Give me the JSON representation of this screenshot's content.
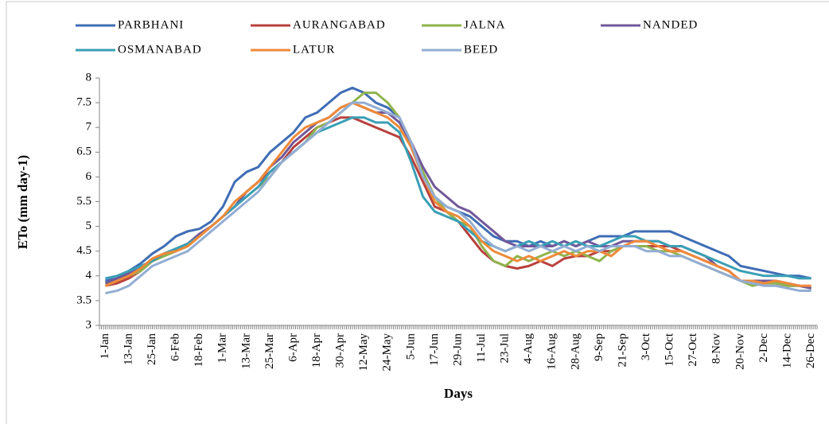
{
  "chart_data": {
    "type": "line",
    "x_label": "Days",
    "y_label": "ETo (mm day-1)",
    "categories": [
      "1-Jan",
      null,
      "13-Jan",
      null,
      "25-Jan",
      null,
      "6-Feb",
      null,
      "18-Feb",
      null,
      "1-Mar",
      null,
      "13-Mar",
      null,
      "25-Mar",
      null,
      "6-Apr",
      null,
      "18-Apr",
      null,
      "30-Apr",
      null,
      "12-May",
      null,
      "24-May",
      null,
      "5-Jun",
      null,
      "17-Jun",
      null,
      "29-Jun",
      null,
      "11-Jul",
      null,
      "23-Jul",
      null,
      "4-Aug",
      null,
      "16-Aug",
      null,
      "28-Aug",
      null,
      "9-Sep",
      null,
      "21-Sep",
      null,
      "3-Oct",
      null,
      "15-Oct",
      null,
      "27-Oct",
      null,
      "8-Nov",
      null,
      "20-Nov",
      null,
      "2-Dec",
      null,
      "14-Dec",
      null,
      "26-Dec"
    ],
    "ylim": [
      3,
      8
    ],
    "yticks": [
      3,
      3.5,
      4,
      4.5,
      5,
      5.5,
      6,
      6.5,
      7,
      7.5,
      8
    ],
    "legend": "top",
    "series": [
      {
        "name": "PARBHANI",
        "color": "#3f6db5",
        "values": [
          3.9,
          3.95,
          4.1,
          4.25,
          4.45,
          4.6,
          4.8,
          4.9,
          4.95,
          5.1,
          5.4,
          5.9,
          6.1,
          6.2,
          6.5,
          6.7,
          6.9,
          7.2,
          7.3,
          7.5,
          7.7,
          7.8,
          7.7,
          7.5,
          7.4,
          7.2,
          6.6,
          6.0,
          5.6,
          5.4,
          5.3,
          5.2,
          5.0,
          4.8,
          4.7,
          4.7,
          4.6,
          4.7,
          4.6,
          4.7,
          4.6,
          4.7,
          4.8,
          4.8,
          4.8,
          4.9,
          4.9,
          4.9,
          4.9,
          4.8,
          4.7,
          4.6,
          4.5,
          4.4,
          4.2,
          4.15,
          4.1,
          4.05,
          4.0,
          4.0,
          3.95
        ]
      },
      {
        "name": "AURANGABAD",
        "color": "#b8413e",
        "values": [
          3.8,
          3.85,
          3.95,
          4.1,
          4.3,
          4.4,
          4.5,
          4.6,
          4.8,
          5.0,
          5.2,
          5.4,
          5.7,
          5.9,
          6.1,
          6.3,
          6.6,
          6.8,
          7.0,
          7.1,
          7.2,
          7.2,
          7.1,
          7.0,
          6.9,
          6.8,
          6.4,
          5.9,
          5.4,
          5.3,
          5.1,
          4.8,
          4.5,
          4.3,
          4.2,
          4.15,
          4.2,
          4.3,
          4.2,
          4.35,
          4.4,
          4.4,
          4.5,
          4.5,
          4.6,
          4.6,
          4.6,
          4.6,
          4.6,
          4.5,
          4.4,
          4.3,
          4.2,
          4.1,
          3.9,
          3.9,
          3.85,
          3.85,
          3.8,
          3.8,
          3.75
        ]
      },
      {
        "name": "JALNA",
        "color": "#8fb44d",
        "values": [
          3.8,
          3.9,
          4.0,
          4.1,
          4.3,
          4.4,
          4.5,
          4.6,
          4.8,
          5.0,
          5.2,
          5.4,
          5.6,
          5.8,
          6.0,
          6.3,
          6.5,
          6.7,
          7.0,
          7.1,
          7.3,
          7.5,
          7.7,
          7.7,
          7.5,
          7.2,
          6.7,
          6.1,
          5.6,
          5.3,
          5.1,
          5.0,
          4.6,
          4.3,
          4.2,
          4.4,
          4.3,
          4.4,
          4.5,
          4.4,
          4.5,
          4.4,
          4.3,
          4.5,
          4.6,
          4.6,
          4.6,
          4.5,
          4.5,
          4.4,
          4.3,
          4.2,
          4.1,
          4.0,
          3.9,
          3.8,
          3.85,
          3.85,
          3.8,
          3.8,
          3.75
        ]
      },
      {
        "name": "NANDED",
        "color": "#71589a",
        "values": [
          3.85,
          3.95,
          4.05,
          4.15,
          4.35,
          4.45,
          4.55,
          4.65,
          4.85,
          5.0,
          5.2,
          5.4,
          5.7,
          5.9,
          6.2,
          6.4,
          6.7,
          6.9,
          7.1,
          7.2,
          7.4,
          7.5,
          7.4,
          7.3,
          7.3,
          7.1,
          6.7,
          6.2,
          5.8,
          5.6,
          5.4,
          5.3,
          5.1,
          4.9,
          4.7,
          4.6,
          4.6,
          4.6,
          4.6,
          4.7,
          4.6,
          4.7,
          4.6,
          4.6,
          4.7,
          4.7,
          4.7,
          4.7,
          4.6,
          4.6,
          4.5,
          4.4,
          4.2,
          4.1,
          3.9,
          3.9,
          3.9,
          3.9,
          3.85,
          3.8,
          3.75
        ]
      },
      {
        "name": "OSMANABAD",
        "color": "#3a9fb5",
        "values": [
          3.95,
          4.0,
          4.1,
          4.2,
          4.3,
          4.45,
          4.55,
          4.65,
          4.8,
          5.0,
          5.2,
          5.4,
          5.6,
          5.8,
          6.1,
          6.3,
          6.5,
          6.7,
          6.9,
          7.0,
          7.1,
          7.2,
          7.2,
          7.1,
          7.1,
          6.9,
          6.3,
          5.6,
          5.3,
          5.2,
          5.1,
          4.9,
          4.7,
          4.6,
          4.5,
          4.6,
          4.7,
          4.6,
          4.7,
          4.6,
          4.7,
          4.6,
          4.6,
          4.7,
          4.8,
          4.8,
          4.7,
          4.7,
          4.6,
          4.6,
          4.5,
          4.4,
          4.3,
          4.2,
          4.1,
          4.05,
          4.0,
          4.0,
          4.0,
          3.95,
          3.95
        ]
      },
      {
        "name": "LATUR",
        "color": "#ee8a3a",
        "values": [
          3.8,
          3.9,
          4.0,
          4.15,
          4.35,
          4.45,
          4.5,
          4.6,
          4.8,
          5.0,
          5.2,
          5.5,
          5.7,
          5.9,
          6.2,
          6.5,
          6.8,
          7.0,
          7.1,
          7.2,
          7.4,
          7.5,
          7.4,
          7.3,
          7.2,
          7.0,
          6.6,
          6.0,
          5.5,
          5.3,
          5.2,
          5.0,
          4.7,
          4.5,
          4.4,
          4.3,
          4.4,
          4.3,
          4.4,
          4.5,
          4.4,
          4.5,
          4.5,
          4.4,
          4.6,
          4.7,
          4.7,
          4.6,
          4.5,
          4.5,
          4.4,
          4.3,
          4.2,
          4.1,
          3.9,
          3.9,
          3.85,
          3.9,
          3.85,
          3.8,
          3.8
        ]
      },
      {
        "name": "BEED",
        "color": "#93add3",
        "values": [
          3.65,
          3.7,
          3.8,
          4.0,
          4.2,
          4.3,
          4.4,
          4.5,
          4.7,
          4.9,
          5.1,
          5.3,
          5.5,
          5.7,
          6.0,
          6.3,
          6.5,
          6.7,
          6.9,
          7.1,
          7.3,
          7.5,
          7.5,
          7.4,
          7.3,
          7.2,
          6.7,
          6.0,
          5.6,
          5.4,
          5.3,
          5.1,
          4.8,
          4.6,
          4.5,
          4.6,
          4.5,
          4.6,
          4.5,
          4.6,
          4.5,
          4.6,
          4.5,
          4.6,
          4.6,
          4.6,
          4.5,
          4.5,
          4.4,
          4.4,
          4.3,
          4.2,
          4.1,
          4.0,
          3.9,
          3.85,
          3.8,
          3.8,
          3.75,
          3.7,
          3.7
        ]
      }
    ]
  }
}
